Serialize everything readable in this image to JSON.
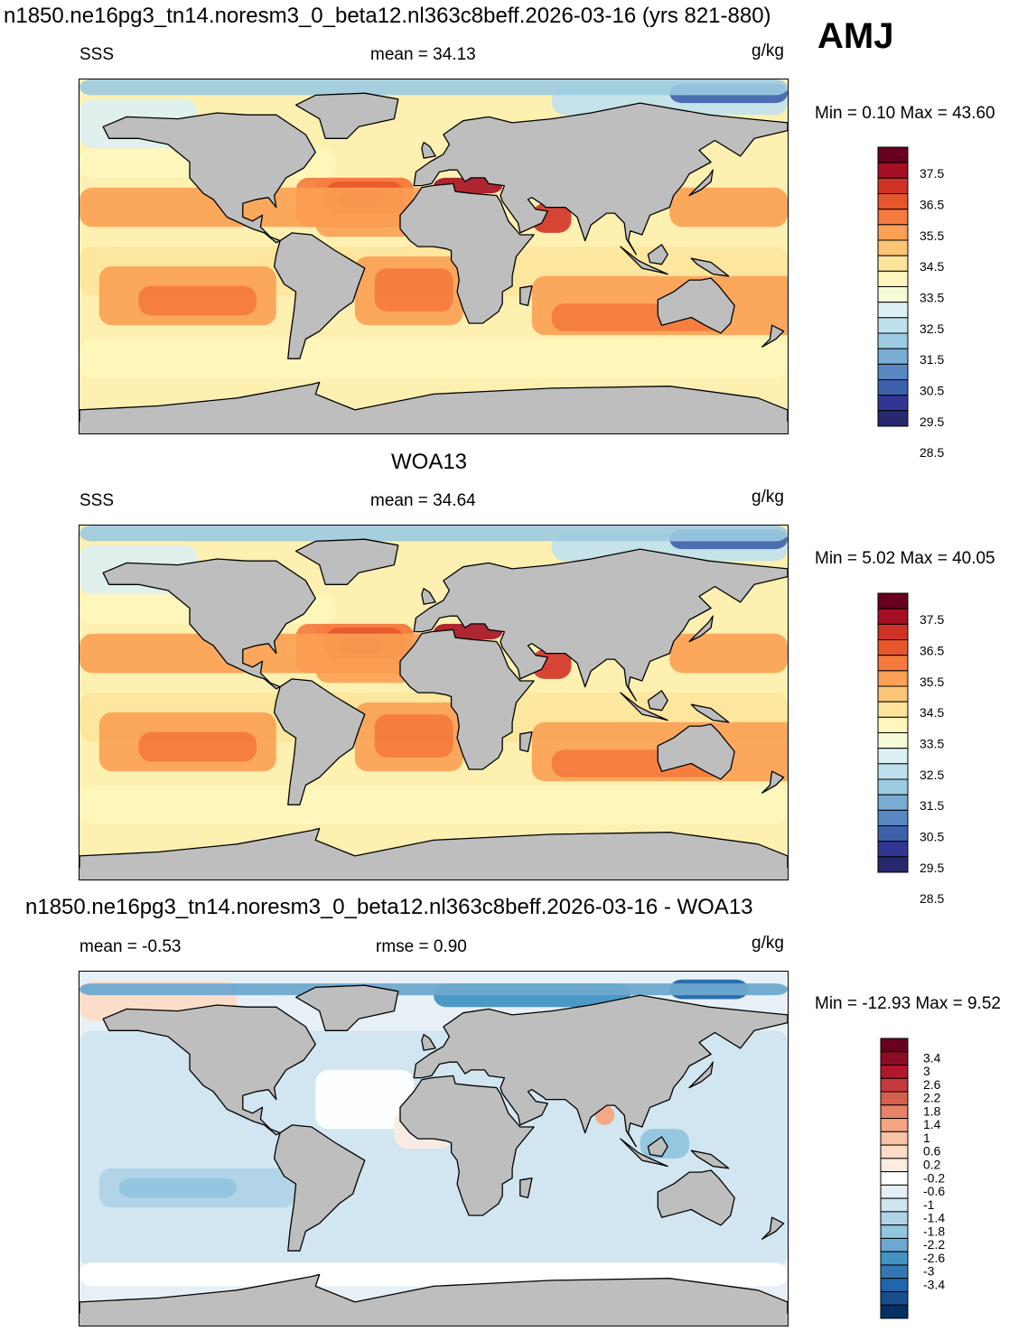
{
  "title": "n1850.ne16pg3_tn14.noresm3_0_beta12.nl363c8beff.2026-03-16 (yrs 821-880)",
  "season": "AMJ",
  "panels": [
    {
      "variable": "SSS",
      "stat": "mean =  34.13",
      "units": "g/kg",
      "minmax": "Min =    0.10 Max =  43.60",
      "colorbar_labels": [
        "37.5",
        "36.5",
        "35.5",
        "34.5",
        "33.5",
        "32.5",
        "31.5",
        "30.5",
        "29.5",
        "28.5"
      ],
      "colorbar_colors": [
        "#67001f",
        "#a50f24",
        "#d13226",
        "#e8562c",
        "#f4793d",
        "#fba054",
        "#fdc676",
        "#fde49b",
        "#fff6bd",
        "#f5fbd7",
        "#ddf0f4",
        "#bfe1ee",
        "#9ccbe2",
        "#78acd3",
        "#5887c2",
        "#3e61ab",
        "#313695",
        "#28286e"
      ]
    },
    {
      "header": "WOA13",
      "variable": "SSS",
      "stat": "mean =  34.64",
      "units": "g/kg",
      "minmax": "Min =    5.02 Max =  40.05",
      "colorbar_labels": [
        "37.5",
        "36.5",
        "35.5",
        "34.5",
        "33.5",
        "32.5",
        "31.5",
        "30.5",
        "29.5",
        "28.5"
      ],
      "colorbar_colors": [
        "#67001f",
        "#a50f24",
        "#d13226",
        "#e8562c",
        "#f4793d",
        "#fba054",
        "#fdc676",
        "#fde49b",
        "#fff6bd",
        "#f5fbd7",
        "#ddf0f4",
        "#bfe1ee",
        "#9ccbe2",
        "#78acd3",
        "#5887c2",
        "#3e61ab",
        "#313695",
        "#28286e"
      ]
    },
    {
      "header": "n1850.ne16pg3_tn14.noresm3_0_beta12.nl363c8beff.2026-03-16 - WOA13",
      "variable": "mean =  -0.53",
      "stat": "rmse =   0.90",
      "units": "g/kg",
      "minmax": "Min = -12.93 Max =   9.52",
      "colorbar_labels": [
        "3.4",
        "3",
        "2.6",
        "2.2",
        "1.8",
        "1.4",
        "1",
        "0.6",
        "0.2",
        "-0.2",
        "-0.6",
        "-1",
        "-1.4",
        "-1.8",
        "-2.2",
        "-2.6",
        "-3",
        "-3.4"
      ],
      "colorbar_colors": [
        "#67001f",
        "#8d0c25",
        "#b2182b",
        "#c53a3f",
        "#d6604d",
        "#e58267",
        "#f4a582",
        "#f8c3a6",
        "#fddbc7",
        "#fbebe1",
        "#ffffff",
        "#e6eff5",
        "#d1e5f0",
        "#b0d3e7",
        "#92c5de",
        "#6ea8d0",
        "#4393c3",
        "#3478b3",
        "#2166ac",
        "#174f8c",
        "#053061"
      ]
    }
  ]
}
